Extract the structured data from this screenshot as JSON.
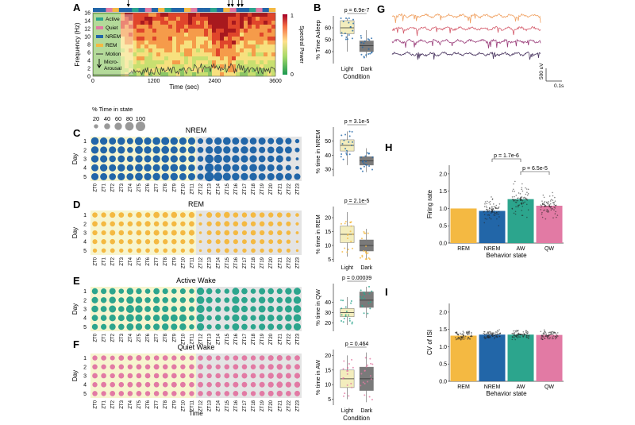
{
  "panel_letters": {
    "A": "A",
    "B": "B",
    "C": "C",
    "D": "D",
    "E": "E",
    "F": "F",
    "G": "G",
    "H": "H",
    "I": "I"
  },
  "colors": {
    "active": "#2ca58d",
    "quiet": "#e27aa4",
    "nrem": "#2266a8",
    "rem": "#f4b942",
    "motion": "#333333",
    "light_bg": "#f7f5cf",
    "dark_bg": "#e4e4e4",
    "gray_box": "#7a7a7a",
    "light_box": "#f3edbd"
  },
  "chart_data": [
    {
      "id": "A",
      "type": "heatmap",
      "xlabel": "Time (sec)",
      "ylabel": "Frequency (Hz)",
      "xticks": [
        "0",
        "1200",
        "2400",
        "3600"
      ],
      "yticks": [
        "0",
        "2",
        "4",
        "6",
        "8",
        "10",
        "12",
        "14",
        "16"
      ],
      "colorbar": {
        "label": "Spectral Power",
        "min": "0",
        "max": "1"
      },
      "legend": [
        "Active",
        "Quiet",
        "NREM",
        "REM",
        "Motion",
        "Micro-Arousal"
      ],
      "state_bar": [
        "nrem",
        "nrem",
        "quiet",
        "rem",
        "nrem",
        "nrem",
        "active",
        "nrem",
        "quiet",
        "nrem",
        "rem",
        "active",
        "nrem",
        "nrem",
        "rem",
        "quiet",
        "nrem",
        "nrem",
        "active",
        "nrem",
        "rem",
        "quiet",
        "nrem",
        "nrem",
        "active",
        "quiet",
        "nrem",
        "rem"
      ],
      "arousal_sec": [
        700,
        2680,
        2750,
        2870,
        2940
      ]
    },
    {
      "id": "B",
      "type": "box",
      "title": "p = 6.9e-7",
      "xlabel": "Condition",
      "ylabel": "% Time Asleep",
      "categories": [
        "Light",
        "Dark"
      ],
      "ylim": [
        30,
        70
      ],
      "yticks": [
        40,
        50,
        60
      ],
      "boxes": [
        {
          "q1": 55,
          "median": 60,
          "q3": 66,
          "min": 40,
          "max": 68
        },
        {
          "q1": 40,
          "median": 45,
          "q3": 49,
          "min": 35,
          "max": 58
        }
      ]
    },
    {
      "id": "legend",
      "title": "% Time in state",
      "values": [
        20,
        40,
        60,
        80,
        100
      ]
    },
    {
      "id": "C",
      "type": "bubble",
      "title": "NREM",
      "ylabel": "Day",
      "days": [
        "1",
        "2",
        "3",
        "4",
        "5"
      ],
      "xlabels": [
        "ZT0",
        "ZT1",
        "ZT2",
        "ZT3",
        "ZT4",
        "ZT5",
        "ZT6",
        "ZT7",
        "ZT8",
        "ZT9",
        "ZT10",
        "ZT11",
        "ZT12",
        "ZT13",
        "ZT14",
        "ZT15",
        "ZT16",
        "ZT17",
        "ZT18",
        "ZT19",
        "ZT20",
        "ZT21",
        "ZT22",
        "ZT23"
      ],
      "values": [
        [
          65,
          60,
          55,
          62,
          45,
          72,
          58,
          65,
          70,
          62,
          60,
          58,
          35,
          52,
          60,
          65,
          55,
          60,
          52,
          56,
          44,
          58,
          45,
          20
        ],
        [
          62,
          55,
          58,
          60,
          40,
          68,
          60,
          62,
          66,
          58,
          50,
          60,
          40,
          62,
          70,
          60,
          50,
          62,
          55,
          46,
          52,
          60,
          55,
          25
        ],
        [
          60,
          58,
          50,
          55,
          45,
          60,
          55,
          60,
          62,
          60,
          55,
          50,
          38,
          80,
          75,
          62,
          62,
          58,
          60,
          52,
          50,
          58,
          30,
          10
        ],
        [
          55,
          60,
          56,
          62,
          50,
          65,
          62,
          58,
          60,
          64,
          55,
          52,
          35,
          85,
          60,
          68,
          56,
          50,
          64,
          58,
          55,
          45,
          35,
          15
        ],
        [
          58,
          56,
          52,
          60,
          55,
          66,
          58,
          62,
          60,
          62,
          56,
          58,
          45,
          95,
          80,
          70,
          62,
          60,
          62,
          55,
          58,
          62,
          55,
          45
        ]
      ]
    },
    {
      "id": "C_box",
      "type": "box",
      "title": "p = 3.1e-5",
      "ylabel": "% time in NREM",
      "categories": [
        "Light",
        "Dark"
      ],
      "ylim": [
        25,
        60
      ],
      "yticks": [
        30,
        40,
        50
      ],
      "boxes": [
        {
          "q1": 43,
          "median": 47,
          "q3": 51,
          "min": 33,
          "max": 57
        },
        {
          "q1": 33,
          "median": 36,
          "q3": 39,
          "min": 28,
          "max": 45
        }
      ]
    },
    {
      "id": "D",
      "type": "bubble",
      "title": "REM",
      "ylabel": "Day",
      "days": [
        "1",
        "2",
        "3",
        "4",
        "5"
      ],
      "values": [
        [
          30,
          28,
          35,
          32,
          25,
          38,
          30,
          42,
          35,
          40,
          32,
          38,
          10,
          35,
          32,
          40,
          30,
          28,
          32,
          30,
          28,
          30,
          25,
          15
        ],
        [
          32,
          30,
          30,
          28,
          30,
          34,
          36,
          30,
          34,
          30,
          28,
          32,
          12,
          28,
          30,
          34,
          30,
          32,
          28,
          30,
          28,
          26,
          26,
          12
        ],
        [
          28,
          26,
          34,
          30,
          26,
          32,
          30,
          36,
          30,
          34,
          30,
          36,
          8,
          26,
          28,
          32,
          28,
          26,
          30,
          28,
          26,
          28,
          22,
          10
        ],
        [
          26,
          28,
          30,
          26,
          28,
          30,
          28,
          32,
          28,
          30,
          26,
          30,
          10,
          24,
          26,
          30,
          26,
          24,
          28,
          26,
          24,
          26,
          20,
          8
        ],
        [
          20,
          22,
          24,
          20,
          22,
          26,
          22,
          24,
          22,
          24,
          20,
          24,
          8,
          20,
          22,
          24,
          20,
          20,
          22,
          20,
          20,
          22,
          18,
          8
        ]
      ]
    },
    {
      "id": "D_box",
      "type": "box",
      "title": "p = 2.1e-5",
      "ylabel": "% time in REM",
      "categories": [
        "Light",
        "Dark"
      ],
      "ylim": [
        4,
        24
      ],
      "yticks": [
        5,
        10,
        15,
        20
      ],
      "boxes": [
        {
          "q1": 11,
          "median": 14,
          "q3": 17,
          "min": 6,
          "max": 22
        },
        {
          "q1": 8,
          "median": 10,
          "q3": 12,
          "min": 5,
          "max": 16
        }
      ]
    },
    {
      "id": "E",
      "type": "bubble",
      "title": "Active Wake",
      "ylabel": "Day",
      "days": [
        "1",
        "2",
        "3",
        "4",
        "5"
      ],
      "values": [
        [
          40,
          35,
          45,
          30,
          50,
          38,
          30,
          42,
          36,
          30,
          35,
          28,
          60,
          40,
          30,
          28,
          55,
          40,
          30,
          45,
          40,
          35,
          48,
          55
        ],
        [
          45,
          38,
          50,
          35,
          60,
          50,
          38,
          48,
          40,
          35,
          38,
          32,
          65,
          45,
          35,
          32,
          60,
          42,
          34,
          50,
          42,
          40,
          50,
          60
        ],
        [
          50,
          42,
          55,
          40,
          70,
          60,
          42,
          52,
          45,
          40,
          42,
          36,
          70,
          38,
          38,
          36,
          64,
          46,
          38,
          54,
          46,
          44,
          55,
          65
        ],
        [
          42,
          40,
          48,
          45,
          65,
          55,
          40,
          50,
          60,
          55,
          58,
          34,
          68,
          30,
          40,
          34,
          58,
          44,
          36,
          50,
          50,
          42,
          52,
          62
        ],
        [
          38,
          36,
          44,
          40,
          55,
          50,
          36,
          46,
          50,
          45,
          50,
          30,
          60,
          28,
          36,
          30,
          55,
          40,
          32,
          46,
          44,
          38,
          48,
          58
        ]
      ]
    },
    {
      "id": "E_box",
      "type": "box",
      "title": "p = 0.00039",
      "ylabel": "% time in QW",
      "categories": [
        "Light",
        "Dark"
      ],
      "ylim": [
        12,
        58
      ],
      "yticks": [
        20,
        30,
        40
      ],
      "boxes": [
        {
          "q1": 26,
          "median": 30,
          "q3": 34,
          "min": 18,
          "max": 45
        },
        {
          "q1": 35,
          "median": 42,
          "q3": 50,
          "min": 25,
          "max": 55
        }
      ]
    },
    {
      "id": "F",
      "type": "bubble",
      "title": "Quiet Wake",
      "ylabel": "Day",
      "xlabel": "Time",
      "days": [
        "1",
        "2",
        "3",
        "4",
        "5"
      ],
      "values": [
        [
          28,
          30,
          25,
          32,
          30,
          35,
          28,
          30,
          32,
          28,
          30,
          26,
          30,
          32,
          26,
          28,
          30,
          32,
          28,
          30,
          34,
          36,
          30,
          32
        ],
        [
          30,
          28,
          30,
          30,
          28,
          32,
          30,
          34,
          30,
          30,
          28,
          30,
          34,
          30,
          28,
          30,
          32,
          30,
          30,
          32,
          36,
          38,
          32,
          34
        ],
        [
          32,
          30,
          28,
          34,
          30,
          30,
          32,
          30,
          34,
          32,
          30,
          28,
          30,
          28,
          30,
          32,
          30,
          34,
          32,
          30,
          38,
          40,
          34,
          36
        ],
        [
          28,
          32,
          30,
          30,
          32,
          34,
          30,
          32,
          30,
          34,
          32,
          30,
          32,
          30,
          32,
          30,
          34,
          32,
          30,
          34,
          36,
          42,
          36,
          38
        ],
        [
          30,
          28,
          32,
          30,
          30,
          32,
          28,
          30,
          32,
          30,
          30,
          28,
          30,
          32,
          28,
          30,
          32,
          30,
          28,
          32,
          34,
          38,
          32,
          34
        ]
      ]
    },
    {
      "id": "F_box",
      "type": "box",
      "title": "p = 0.464",
      "xlabel": "Condition",
      "ylabel": "% time in AW",
      "categories": [
        "Light",
        "Dark"
      ],
      "ylim": [
        3,
        22
      ],
      "yticks": [
        5,
        10,
        15,
        20
      ],
      "boxes": [
        {
          "q1": 9,
          "median": 12,
          "q3": 15,
          "min": 5,
          "max": 20
        },
        {
          "q1": 8,
          "median": 12,
          "q3": 16,
          "min": 4,
          "max": 21
        }
      ]
    },
    {
      "id": "G",
      "type": "line",
      "scalebar": {
        "y": "500 uV",
        "x": "0.1s"
      },
      "traces": [
        {
          "name": "trace1",
          "color": "#f0a060"
        },
        {
          "name": "trace2",
          "color": "#d45a6a"
        },
        {
          "name": "trace3",
          "color": "#9a3d7a"
        },
        {
          "name": "trace4",
          "color": "#4a3560"
        }
      ]
    },
    {
      "id": "H",
      "type": "bar",
      "xlabel": "Behavior state",
      "ylabel": "Firing rate",
      "categories": [
        "REM",
        "NREM",
        "AW",
        "QW"
      ],
      "values": [
        1.0,
        0.93,
        1.27,
        1.08
      ],
      "errors": [
        0,
        0.05,
        0.05,
        0.04
      ],
      "ylim": [
        0,
        2.25
      ],
      "yticks": [
        "0.0",
        "0.5",
        "1.0",
        "1.5",
        "2.0"
      ],
      "brackets": [
        {
          "from": 1,
          "to": 2,
          "label": "p = 1.7e-6"
        },
        {
          "from": 2,
          "to": 3,
          "label": "p = 6.5e-5"
        }
      ],
      "colors": [
        "#f4b942",
        "#2266a8",
        "#2ca58d",
        "#e27aa4"
      ]
    },
    {
      "id": "I",
      "type": "bar",
      "xlabel": "Behavior state",
      "ylabel": "CV of ISI",
      "categories": [
        "REM",
        "NREM",
        "AW",
        "QW"
      ],
      "values": [
        1.32,
        1.35,
        1.35,
        1.34
      ],
      "errors": [
        0.02,
        0.02,
        0.02,
        0.02
      ],
      "ylim": [
        0,
        2.25
      ],
      "yticks": [
        "0.0",
        "0.5",
        "1.0",
        "1.5",
        "2.0"
      ],
      "colors": [
        "#f4b942",
        "#2266a8",
        "#2ca58d",
        "#e27aa4"
      ]
    }
  ]
}
